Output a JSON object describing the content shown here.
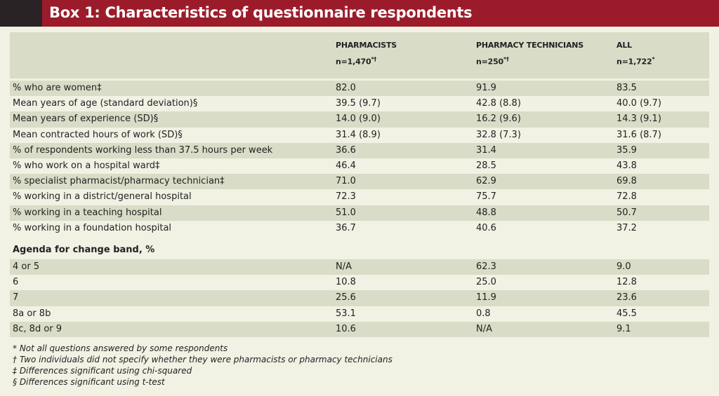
{
  "header": {
    "title": "Box 1: Characteristics of questionnaire respondents"
  },
  "table": {
    "columns": [
      {
        "label": "PHARMACISTS",
        "n": "n=1,470",
        "sup": "*†"
      },
      {
        "label": "PHARMACY TECHNICIANS",
        "n": "n=250",
        "sup": "*†"
      },
      {
        "label": "ALL",
        "n": "n=1,722",
        "sup": "*"
      }
    ],
    "rows": [
      [
        "% who are women‡",
        "82.0",
        "91.9",
        "83.5"
      ],
      [
        "Mean years of age (standard deviation)§",
        "39.5 (9.7)",
        "42.8 (8.8)",
        "40.0 (9.7)"
      ],
      [
        "Mean years of experience (SD)§",
        "14.0 (9.0)",
        "16.2 (9.6)",
        "14.3 (9.1)"
      ],
      [
        "Mean contracted hours of work (SD)§",
        "31.4 (8.9)",
        "32.8 (7.3)",
        "31.6 (8.7)"
      ],
      [
        "% of respondents working less than 37.5 hours per week",
        "36.6",
        "31.4",
        "35.9"
      ],
      [
        "% who work on a hospital ward‡",
        "46.4",
        "28.5",
        "43.8"
      ],
      [
        "% specialist pharmacist/pharmacy technician‡",
        "71.0",
        "62.9",
        "69.8"
      ],
      [
        "% working in a district/general hospital",
        "72.3",
        "75.7",
        "72.8"
      ],
      [
        "% working in a teaching hospital",
        "51.0",
        "48.8",
        "50.7"
      ],
      [
        "% working in a foundation hospital",
        "36.7",
        "40.6",
        "37.2"
      ]
    ],
    "section_title": "Agenda for change band, %",
    "section_rows": [
      [
        "4 or 5",
        "N/A",
        "62.3",
        "9.0"
      ],
      [
        "6",
        "10.8",
        "25.0",
        "12.8"
      ],
      [
        "7",
        "25.6",
        "11.9",
        "23.6"
      ],
      [
        "8a or 8b",
        "53.1",
        "0.8",
        "45.5"
      ],
      [
        "8c, 8d or 9",
        "10.6",
        "N/A",
        "9.1"
      ]
    ]
  },
  "footnotes": [
    "* Not all questions answered by some respondents",
    "† Two individuals did not specify whether they were pharmacists or pharmacy technicians",
    "‡ Differences significant using chi-squared",
    "§ Differences significant using t-test"
  ]
}
